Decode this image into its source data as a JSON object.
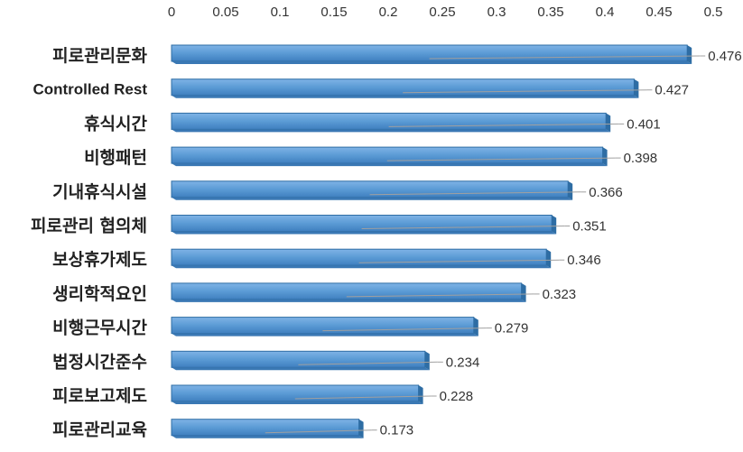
{
  "chart_data": {
    "type": "bar",
    "orientation": "horizontal",
    "categories": [
      "피로관리문화",
      "Controlled Rest",
      "휴식시간",
      "비행패턴",
      "기내휴식시설",
      "피로관리 협의체",
      "보상휴가제도",
      "생리학적요인",
      "비행근무시간",
      "법정시간준수",
      "피로보고제도",
      "피로관리교육"
    ],
    "values": [
      0.476,
      0.427,
      0.401,
      0.398,
      0.366,
      0.351,
      0.346,
      0.323,
      0.279,
      0.234,
      0.228,
      0.173
    ],
    "value_labels": [
      "0.476",
      "0.427",
      "0.401",
      "0.398",
      "0.366",
      "0.351",
      "0.346",
      "0.323",
      "0.279",
      "0.234",
      "0.228",
      "0.173"
    ],
    "xlim": [
      0,
      0.5
    ],
    "xticks": [
      "0",
      "0.05",
      "0.1",
      "0.15",
      "0.2",
      "0.25",
      "0.3",
      "0.35",
      "0.4",
      "0.45",
      "0.5"
    ],
    "axis_position": "top",
    "grid": false,
    "bar_color": "#5b9bd5",
    "bar_edge_color": "#2e6da4",
    "title": "",
    "xlabel": "",
    "ylabel": ""
  }
}
